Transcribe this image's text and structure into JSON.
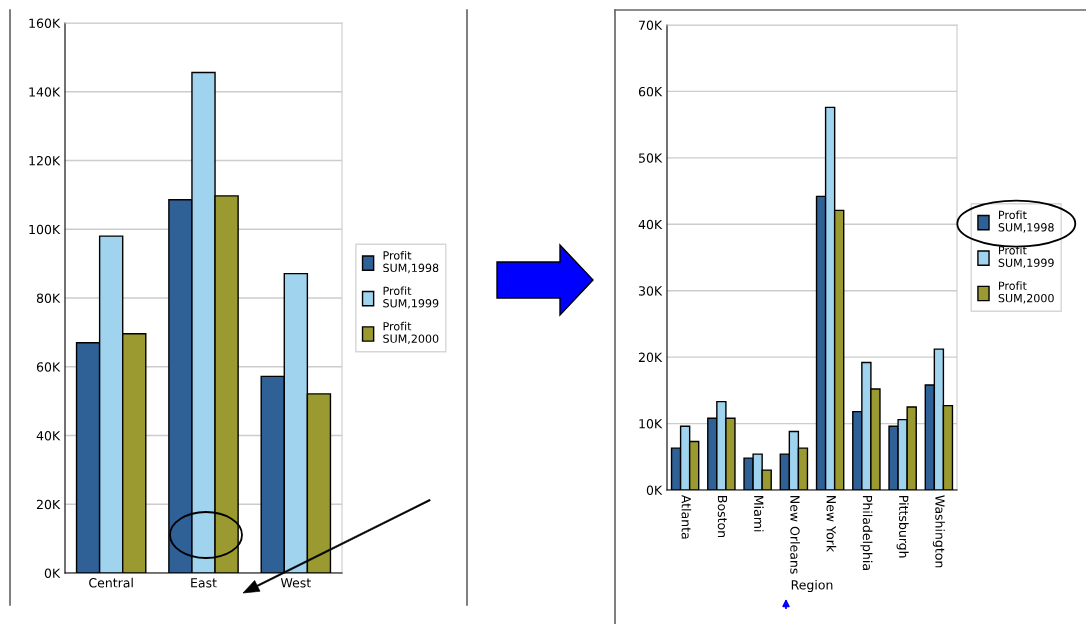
{
  "chart_data": [
    {
      "type": "bar",
      "categories": [
        "Central",
        "East",
        "West"
      ],
      "series": [
        {
          "name": "Profit\nSUM,1998",
          "color": "#2f6096",
          "values": [
            67000,
            108600,
            57200
          ]
        },
        {
          "name": "Profit\nSUM,1999",
          "color": "#9fd3ee",
          "values": [
            98000,
            145600,
            87100
          ]
        },
        {
          "name": "Profit\nSUM,2000",
          "color": "#9a9a30",
          "values": [
            69600,
            109700,
            52100
          ]
        }
      ],
      "ylim": [
        0,
        160000
      ],
      "yticks": [
        {
          "value": 0,
          "label": "0K"
        },
        {
          "value": 20000,
          "label": "20K"
        },
        {
          "value": 40000,
          "label": "40K"
        },
        {
          "value": 60000,
          "label": "60K"
        },
        {
          "value": 80000,
          "label": "80K"
        },
        {
          "value": 100000,
          "label": "100K"
        },
        {
          "value": 120000,
          "label": "120K"
        },
        {
          "value": 140000,
          "label": "140K"
        },
        {
          "value": 160000,
          "label": "160K"
        }
      ],
      "grid": "y",
      "legend": "right"
    },
    {
      "type": "bar",
      "xlabel": "Region",
      "categories": [
        "Atlanta",
        "Boston",
        "Miami",
        "New Orleans",
        "New York",
        "Philadelphia",
        "Pittsburgh",
        "Washington"
      ],
      "series": [
        {
          "name": "Profit\nSUM,1998",
          "color": "#2f6096",
          "values": [
            6300,
            10800,
            4800,
            5400,
            44200,
            11800,
            9600,
            15800
          ]
        },
        {
          "name": "Profit\nSUM,1999",
          "color": "#9fd3ee",
          "values": [
            9600,
            13300,
            5400,
            8800,
            57600,
            19200,
            10600,
            21200
          ]
        },
        {
          "name": "Profit\nSUM,2000",
          "color": "#9a9a30",
          "values": [
            7300,
            10800,
            3000,
            6300,
            42100,
            15200,
            12500,
            12700
          ]
        }
      ],
      "ylim": [
        0,
        70000
      ],
      "yticks": [
        {
          "value": 0,
          "label": "0K"
        },
        {
          "value": 10000,
          "label": "10K"
        },
        {
          "value": 20000,
          "label": "20K"
        },
        {
          "value": 30000,
          "label": "30K"
        },
        {
          "value": 40000,
          "label": "40K"
        },
        {
          "value": 50000,
          "label": "50K"
        },
        {
          "value": 60000,
          "label": "60K"
        },
        {
          "value": 70000,
          "label": "70K"
        }
      ],
      "grid": "y",
      "legend": "right"
    }
  ]
}
